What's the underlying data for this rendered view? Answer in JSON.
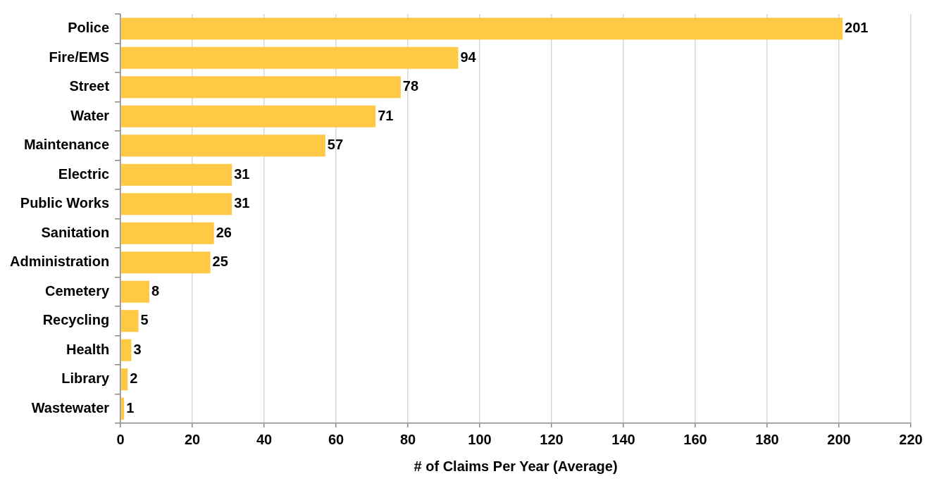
{
  "chart_data": {
    "type": "bar",
    "orientation": "horizontal",
    "xlabel": "# of Claims Per Year (Average)",
    "categories": [
      "Police",
      "Fire/EMS",
      "Street",
      "Water",
      "Maintenance",
      "Electric",
      "Public Works",
      "Sanitation",
      "Administration",
      "Cemetery",
      "Recycling",
      "Health",
      "Library",
      "Wastewater"
    ],
    "values": [
      201,
      94,
      78,
      71,
      57,
      31,
      31,
      26,
      25,
      8,
      5,
      3,
      2,
      1
    ],
    "color": "#ffc845",
    "xlim": [
      0,
      220
    ],
    "xticks": [
      0,
      20,
      40,
      60,
      80,
      100,
      120,
      140,
      160,
      180,
      200,
      220
    ],
    "grid": "x",
    "legend": false,
    "data_labels": true
  }
}
